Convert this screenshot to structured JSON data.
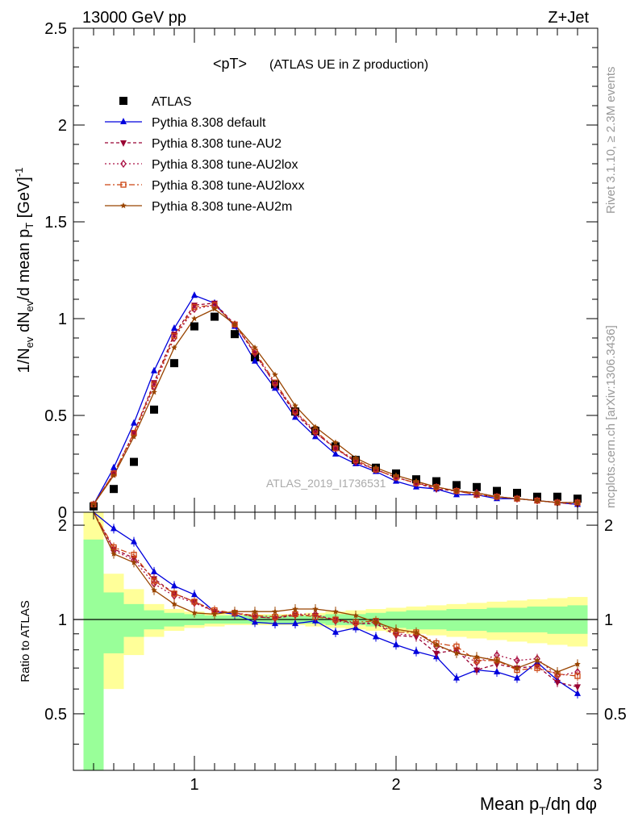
{
  "header": {
    "left_label": "13000 GeV pp",
    "right_label": "Z+Jet",
    "plot_title": "<pT>",
    "plot_subtitle": "(ATLAS UE in Z production)",
    "watermark": "ATLAS_2019_I1736531",
    "side_note_top": "Rivet 3.1.10, ≥ 2.3M events",
    "side_note_bottom": "mcplots.cern.ch [arXiv:1306.3436]"
  },
  "chart_data": [
    {
      "type": "scatter",
      "panel": "main",
      "ylabel": "1/N_ev dN_ev/d mean p_T [GeV]^-1",
      "xlim": [
        0.4,
        3.0
      ],
      "ylim": [
        0,
        2.5
      ],
      "yticks": [
        "0",
        "0.5",
        "1",
        "1.5",
        "2",
        "2.5"
      ],
      "x": [
        0.5,
        0.6,
        0.7,
        0.8,
        0.9,
        1.0,
        1.1,
        1.2,
        1.3,
        1.4,
        1.5,
        1.6,
        1.7,
        1.8,
        1.9,
        2.0,
        2.1,
        2.2,
        2.3,
        2.4,
        2.5,
        2.6,
        2.7,
        2.8,
        2.9
      ],
      "legend_position": "top-left",
      "series": [
        {
          "name": "ATLAS",
          "color": "#000000",
          "marker": "square",
          "values": [
            0.03,
            0.12,
            0.26,
            0.53,
            0.77,
            0.96,
            1.01,
            0.92,
            0.8,
            0.66,
            0.52,
            0.42,
            0.34,
            0.27,
            0.23,
            0.2,
            0.17,
            0.16,
            0.14,
            0.13,
            0.11,
            0.1,
            0.08,
            0.08,
            0.07
          ]
        },
        {
          "name": "Pythia 8.308 default",
          "color": "#0000dd",
          "marker": "triangle-up",
          "values": [
            0.04,
            0.23,
            0.46,
            0.73,
            0.95,
            1.12,
            1.08,
            0.96,
            0.78,
            0.64,
            0.49,
            0.39,
            0.3,
            0.25,
            0.21,
            0.16,
            0.13,
            0.12,
            0.09,
            0.09,
            0.07,
            0.07,
            0.06,
            0.05,
            0.04
          ]
        },
        {
          "name": "Pythia 8.308 tune-AU2",
          "color": "#990033",
          "marker": "triangle-down",
          "values": [
            0.04,
            0.2,
            0.41,
            0.67,
            0.92,
            1.07,
            1.08,
            0.97,
            0.82,
            0.66,
            0.51,
            0.41,
            0.33,
            0.26,
            0.22,
            0.18,
            0.15,
            0.12,
            0.11,
            0.09,
            0.08,
            0.07,
            0.06,
            0.05,
            0.04
          ]
        },
        {
          "name": "Pythia 8.308 tune-AU2lox",
          "color": "#aa1144",
          "marker": "diamond-open",
          "values": [
            0.04,
            0.2,
            0.4,
            0.65,
            0.9,
            1.05,
            1.07,
            0.97,
            0.82,
            0.66,
            0.52,
            0.41,
            0.33,
            0.26,
            0.22,
            0.18,
            0.15,
            0.13,
            0.11,
            0.1,
            0.08,
            0.07,
            0.06,
            0.05,
            0.05
          ]
        },
        {
          "name": "Pythia 8.308 tune-AU2loxx",
          "color": "#cc4411",
          "marker": "square-open",
          "values": [
            0.04,
            0.2,
            0.41,
            0.66,
            0.91,
            1.06,
            1.07,
            0.97,
            0.83,
            0.67,
            0.52,
            0.42,
            0.33,
            0.27,
            0.22,
            0.18,
            0.15,
            0.13,
            0.11,
            0.09,
            0.08,
            0.07,
            0.06,
            0.05,
            0.05
          ]
        },
        {
          "name": "Pythia 8.308 tune-AU2m",
          "color": "#994400",
          "marker": "star",
          "values": [
            0.04,
            0.19,
            0.39,
            0.62,
            0.85,
            1.0,
            1.05,
            0.97,
            0.85,
            0.71,
            0.55,
            0.44,
            0.36,
            0.28,
            0.23,
            0.19,
            0.16,
            0.13,
            0.11,
            0.1,
            0.08,
            0.07,
            0.06,
            0.05,
            0.05
          ]
        }
      ]
    },
    {
      "type": "line",
      "panel": "ratio",
      "ylabel": "Ratio to ATLAS",
      "xlabel": "Mean p_T/dη dφ",
      "xlim": [
        0.4,
        3.0
      ],
      "ylim": [
        0.33,
        2.2
      ],
      "yticks": [
        "0.5",
        "1",
        "2"
      ],
      "xticks": [
        "1",
        "2",
        "3"
      ],
      "x": [
        0.5,
        0.6,
        0.7,
        0.8,
        0.9,
        1.0,
        1.1,
        1.2,
        1.3,
        1.4,
        1.5,
        1.6,
        1.7,
        1.8,
        1.9,
        2.0,
        2.1,
        2.2,
        2.3,
        2.4,
        2.5,
        2.6,
        2.7,
        2.8,
        2.9
      ],
      "bands": {
        "stat_color": "#99ff99",
        "total_color": "#ffff99",
        "x_edges": [
          0.45,
          0.55,
          0.65,
          0.75,
          0.85,
          0.95,
          1.05,
          1.15,
          1.25,
          1.35,
          1.45,
          1.55,
          1.65,
          1.75,
          1.85,
          1.95,
          2.05,
          2.15,
          2.25,
          2.35,
          2.45,
          2.55,
          2.65,
          2.75,
          2.85,
          2.95
        ],
        "stat_lo": [
          0.1,
          0.78,
          0.88,
          0.93,
          0.95,
          0.96,
          0.97,
          0.97,
          0.97,
          0.97,
          0.97,
          0.97,
          0.96,
          0.96,
          0.95,
          0.94,
          0.93,
          0.93,
          0.92,
          0.92,
          0.91,
          0.91,
          0.91,
          0.9,
          0.9
        ],
        "stat_hi": [
          1.8,
          1.22,
          1.12,
          1.07,
          1.05,
          1.04,
          1.03,
          1.03,
          1.03,
          1.03,
          1.03,
          1.03,
          1.04,
          1.04,
          1.05,
          1.06,
          1.07,
          1.07,
          1.08,
          1.08,
          1.09,
          1.09,
          1.1,
          1.1,
          1.11
        ],
        "total_lo": [
          0.1,
          0.6,
          0.77,
          0.88,
          0.92,
          0.94,
          0.95,
          0.96,
          0.96,
          0.96,
          0.96,
          0.95,
          0.94,
          0.93,
          0.92,
          0.91,
          0.9,
          0.89,
          0.88,
          0.87,
          0.86,
          0.85,
          0.84,
          0.83,
          0.82
        ],
        "total_hi": [
          2.2,
          1.4,
          1.25,
          1.12,
          1.08,
          1.06,
          1.05,
          1.04,
          1.04,
          1.04,
          1.04,
          1.05,
          1.06,
          1.07,
          1.08,
          1.09,
          1.1,
          1.11,
          1.12,
          1.13,
          1.14,
          1.15,
          1.16,
          1.17,
          1.18
        ]
      },
      "series": [
        {
          "name": "Pythia 8.308 default",
          "color": "#0000dd",
          "marker": "triangle-up",
          "values": [
            2.3,
            1.95,
            1.77,
            1.42,
            1.28,
            1.2,
            1.06,
            1.04,
            0.98,
            0.97,
            0.97,
            0.99,
            0.91,
            0.94,
            0.88,
            0.83,
            0.79,
            0.76,
            0.65,
            0.69,
            0.68,
            0.65,
            0.73,
            0.64,
            0.58
          ]
        },
        {
          "name": "Pythia 8.308 tune-AU2",
          "color": "#990033",
          "marker": "triangle-down",
          "values": [
            2.3,
            1.68,
            1.57,
            1.35,
            1.21,
            1.14,
            1.06,
            1.05,
            1.02,
            1.01,
            1.03,
            1.03,
            1.0,
            0.97,
            0.97,
            0.89,
            0.88,
            0.78,
            0.8,
            0.69,
            0.72,
            0.7,
            0.71,
            0.63,
            0.61
          ]
        },
        {
          "name": "Pythia 8.308 tune-AU2lox",
          "color": "#aa1144",
          "marker": "diamond-open",
          "values": [
            2.3,
            1.66,
            1.55,
            1.3,
            1.19,
            1.13,
            1.06,
            1.05,
            1.02,
            1.01,
            1.04,
            1.04,
            0.99,
            0.97,
            0.98,
            0.9,
            0.89,
            0.82,
            0.79,
            0.73,
            0.77,
            0.74,
            0.75,
            0.66,
            0.68
          ]
        },
        {
          "name": "Pythia 8.308 tune-AU2loxx",
          "color": "#cc4411",
          "marker": "square-open",
          "values": [
            2.3,
            1.7,
            1.61,
            1.33,
            1.21,
            1.14,
            1.07,
            1.05,
            1.03,
            1.02,
            1.04,
            1.02,
            1.0,
            0.98,
            0.99,
            0.91,
            0.91,
            0.84,
            0.82,
            0.74,
            0.74,
            0.69,
            0.7,
            0.67,
            0.66
          ]
        },
        {
          "name": "Pythia 8.308 tune-AU2m",
          "color": "#994400",
          "marker": "star",
          "values": [
            2.3,
            1.62,
            1.52,
            1.24,
            1.12,
            1.05,
            1.04,
            1.06,
            1.06,
            1.06,
            1.08,
            1.08,
            1.06,
            1.03,
            0.98,
            0.93,
            0.91,
            0.83,
            0.78,
            0.76,
            0.74,
            0.7,
            0.74,
            0.68,
            0.72
          ]
        }
      ]
    }
  ]
}
